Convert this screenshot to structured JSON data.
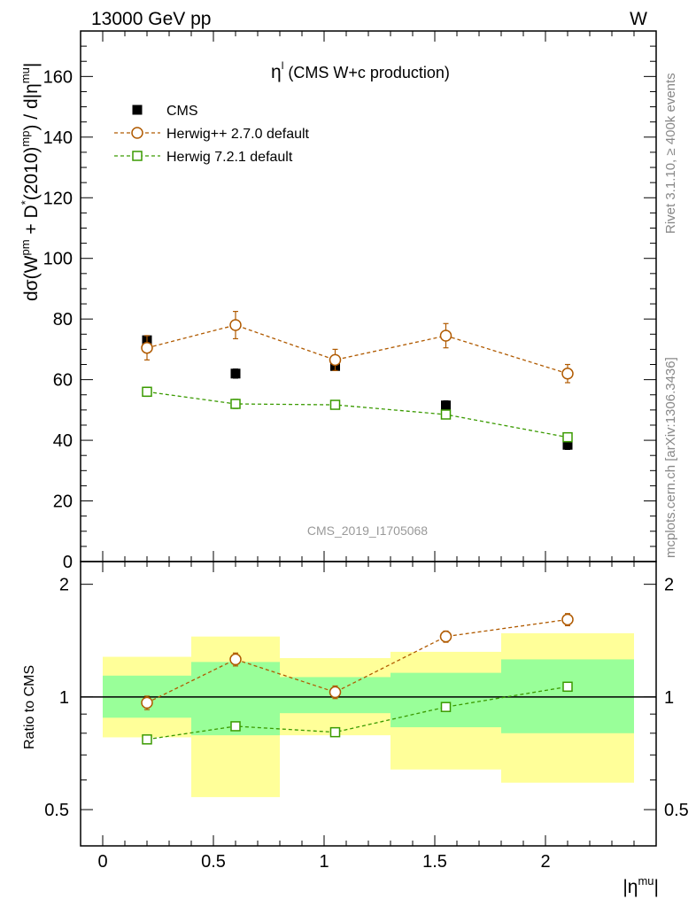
{
  "header": {
    "left": "13000 GeV pp",
    "right": "W"
  },
  "plot_title": {
    "main": "η",
    "sup": "l",
    "rest": " (CMS W+c production)"
  },
  "ylabel": {
    "a": "dσ(W",
    "a_sup": "pm",
    "b": " + D",
    "b_sup": "*",
    "c": "(2010)",
    "c_sup": "mp",
    "d": ") / d|η",
    "d_sup": "mu",
    "e": "|"
  },
  "ratio_ylabel": "Ratio to CMS",
  "xlabel": {
    "main": "|η",
    "sup": "mu",
    "end": "|"
  },
  "side_text": {
    "top": "Rivet 3.1.10, ≥ 400k events",
    "bottom": "mcplots.cern.ch [arXiv:1306.3436]"
  },
  "watermark": "CMS_2019_I1705068",
  "legend": [
    {
      "label": "CMS",
      "marker": "filled-square",
      "color": "#000000"
    },
    {
      "label": "Herwig++ 2.7.0 default",
      "marker": "open-circle",
      "color": "#b05a00"
    },
    {
      "label": "Herwig 7.2.1 default",
      "marker": "open-square",
      "color": "#3a9a00"
    }
  ],
  "chart_data": {
    "type": "scatter",
    "xlim": [
      -0.1,
      2.5
    ],
    "main_ylim": [
      0,
      175
    ],
    "ratio_ylim": [
      0.4,
      2.3
    ],
    "x_ticks": [
      "0",
      "0.5",
      "1",
      "1.5",
      "2"
    ],
    "main_y_ticks": [
      "0",
      "20",
      "40",
      "60",
      "80",
      "100",
      "120",
      "140",
      "160"
    ],
    "ratio_y_ticks": [
      "0.5",
      "1",
      "2"
    ],
    "bins": [
      [
        0,
        0.4
      ],
      [
        0.4,
        0.8
      ],
      [
        0.8,
        1.3
      ],
      [
        1.3,
        1.8
      ],
      [
        1.8,
        2.4
      ]
    ],
    "x": [
      0.2,
      0.6,
      1.05,
      1.55,
      2.1
    ],
    "series": [
      {
        "name": "CMS",
        "values": [
          73,
          62,
          64.5,
          51.5,
          38.5
        ],
        "color": "#000000"
      },
      {
        "name": "Herwig++ 2.7.0 default",
        "values": [
          70.5,
          78,
          66.5,
          74.5,
          62
        ],
        "errors": [
          4,
          4.5,
          3.5,
          4,
          3
        ],
        "color": "#b05a00"
      },
      {
        "name": "Herwig 7.2.1 default",
        "values": [
          56,
          52,
          51.7,
          48.5,
          41
        ],
        "errors": [
          1.5,
          1.5,
          1.2,
          1.2,
          1
        ],
        "color": "#3a9a00"
      }
    ],
    "ratio_series": [
      {
        "name": "Herwig++ 2.7.0 default",
        "values": [
          0.965,
          1.26,
          1.03,
          1.45,
          1.61
        ],
        "errors": [
          0.04,
          0.05,
          0.04,
          0.05,
          0.06
        ]
      },
      {
        "name": "Herwig 7.2.1 default",
        "values": [
          0.77,
          0.835,
          0.805,
          0.94,
          1.065
        ],
        "errors": [
          0.02,
          0.02,
          0.015,
          0.02,
          0.02
        ]
      }
    ],
    "ratio_bands": {
      "inner": [
        [
          0.88,
          1.14
        ],
        [
          0.79,
          1.24
        ],
        [
          0.905,
          1.13
        ],
        [
          0.83,
          1.16
        ],
        [
          0.8,
          1.26
        ]
      ],
      "outer": [
        [
          0.78,
          1.28
        ],
        [
          0.54,
          1.45
        ],
        [
          0.79,
          1.27
        ],
        [
          0.64,
          1.32
        ],
        [
          0.59,
          1.48
        ]
      ]
    }
  }
}
